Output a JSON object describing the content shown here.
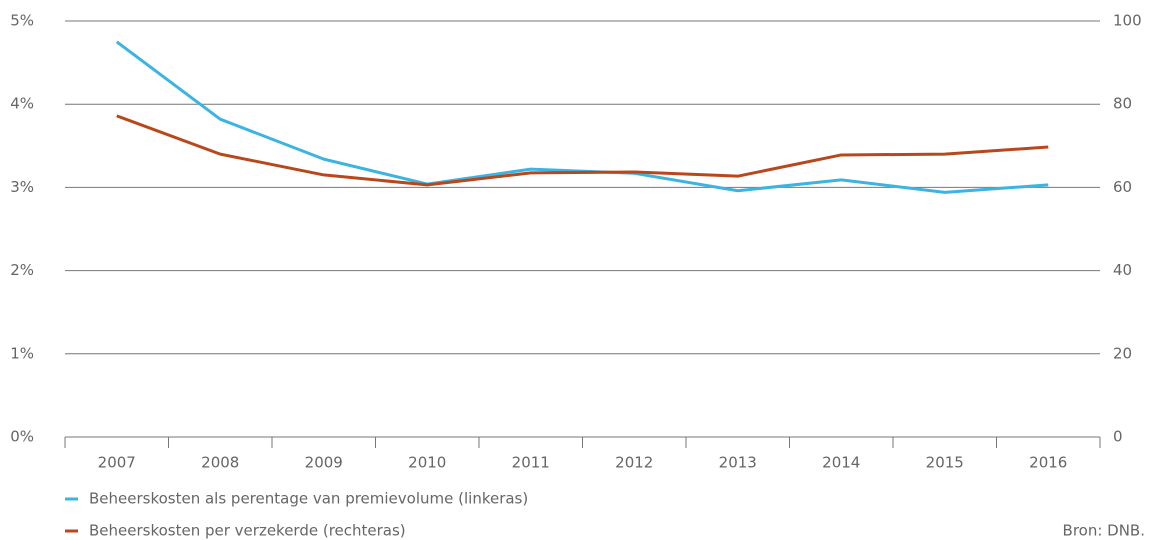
{
  "chart_data": {
    "type": "line",
    "categories": [
      "2007",
      "2008",
      "2009",
      "2010",
      "2011",
      "2012",
      "2013",
      "2014",
      "2015",
      "2016"
    ],
    "series": [
      {
        "name": "Beheerskosten als perentage van premievolume (linkeras)",
        "color": "#3cb4e1",
        "values": [
          4.75,
          3.82,
          3.34,
          3.04,
          3.22,
          3.17,
          2.96,
          3.09,
          2.94,
          3.03
        ]
      },
      {
        "name": "Beheerskosten per verzekerde (rechteras)",
        "color": "#b8481c",
        "axis": "y2",
        "values": [
          77.2,
          68.0,
          63.0,
          60.6,
          63.5,
          63.7,
          62.7,
          67.8,
          68.0,
          69.7
        ]
      }
    ],
    "ylim": [
      0,
      5
    ],
    "yticks": [
      {
        "value": 0,
        "label": "0%"
      },
      {
        "value": 1,
        "label": "1%"
      },
      {
        "value": 2,
        "label": "2%"
      },
      {
        "value": 3,
        "label": "3%"
      },
      {
        "value": 4,
        "label": "4%"
      },
      {
        "value": 5,
        "label": "5%"
      }
    ],
    "y2lim": [
      0,
      100
    ],
    "y2ticks": [
      0,
      20,
      40,
      60,
      80,
      100
    ],
    "grid": true,
    "legend": "bottom-left",
    "source": "Bron: DNB."
  }
}
